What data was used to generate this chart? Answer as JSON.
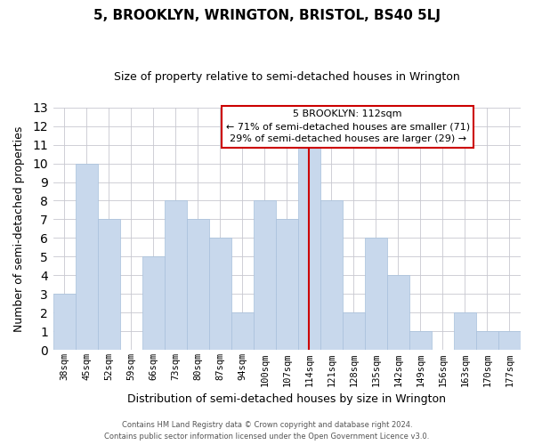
{
  "title": "5, BROOKLYN, WRINGTON, BRISTOL, BS40 5LJ",
  "subtitle": "Size of property relative to semi-detached houses in Wrington",
  "xlabel": "Distribution of semi-detached houses by size in Wrington",
  "ylabel": "Number of semi-detached properties",
  "categories": [
    "38sqm",
    "45sqm",
    "52sqm",
    "59sqm",
    "66sqm",
    "73sqm",
    "80sqm",
    "87sqm",
    "94sqm",
    "100sqm",
    "107sqm",
    "114sqm",
    "121sqm",
    "128sqm",
    "135sqm",
    "142sqm",
    "149sqm",
    "156sqm",
    "163sqm",
    "170sqm",
    "177sqm"
  ],
  "values": [
    3,
    10,
    7,
    0,
    5,
    8,
    7,
    6,
    2,
    8,
    7,
    11,
    8,
    2,
    6,
    4,
    1,
    0,
    2,
    1,
    1
  ],
  "highlight_index": 11,
  "bar_color": "#c8d8ec",
  "bar_edge_color": "#a8c0dc",
  "highlight_line_color": "#cc0000",
  "ylim": [
    0,
    13
  ],
  "yticks": [
    0,
    1,
    2,
    3,
    4,
    5,
    6,
    7,
    8,
    9,
    10,
    11,
    12,
    13
  ],
  "annotation_title": "5 BROOKLYN: 112sqm",
  "annotation_line1": "← 71% of semi-detached houses are smaller (71)",
  "annotation_line2": "29% of semi-detached houses are larger (29) →",
  "footer_line1": "Contains HM Land Registry data © Crown copyright and database right 2024.",
  "footer_line2": "Contains public sector information licensed under the Open Government Licence v3.0.",
  "background_color": "#ffffff",
  "grid_color": "#c8c8d0"
}
